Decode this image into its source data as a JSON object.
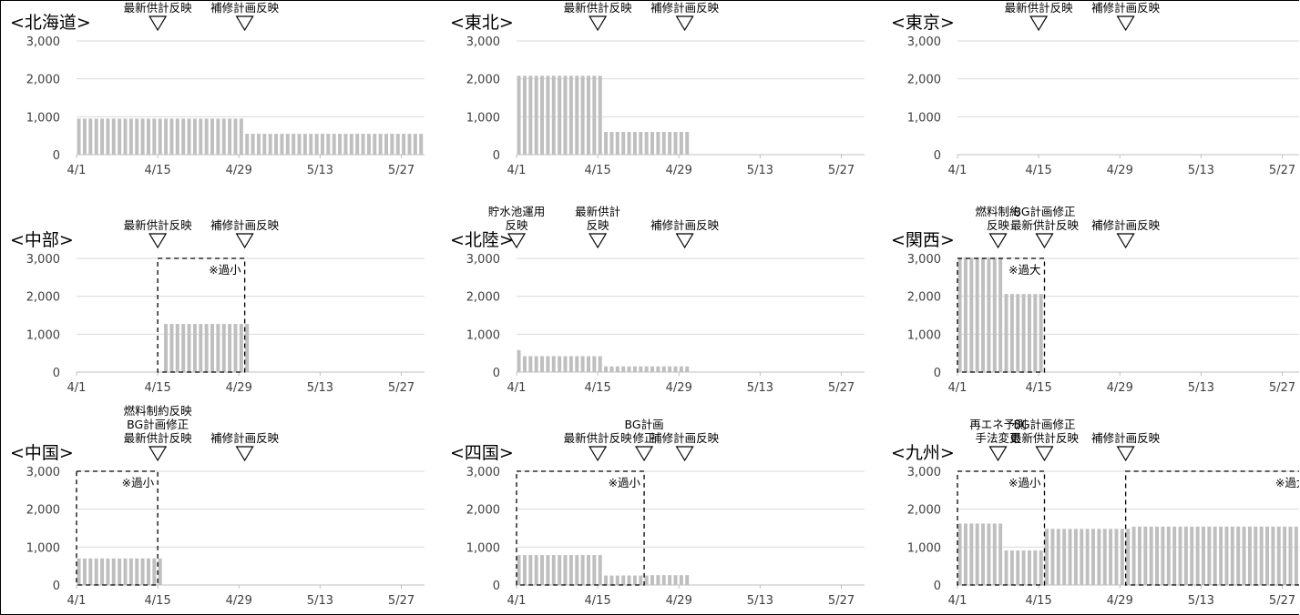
{
  "chart_data": [
    {
      "type": "bar",
      "title": "<北海道>",
      "x_ticks": [
        "4/1",
        "4/15",
        "4/29",
        "5/13",
        "5/27"
      ],
      "y_ticks": [
        "3,000",
        "2,000",
        "1,000",
        "0"
      ],
      "ylim": [
        0,
        3000
      ],
      "xlim_days": [
        1,
        61
      ],
      "bars": [
        {
          "from": "4/1",
          "to": "4/29",
          "value": 950
        },
        {
          "from": "4/30",
          "to": "5/30",
          "value": 550
        }
      ],
      "markers": [
        {
          "date": "4/15",
          "lines": [
            "最新供計反映"
          ]
        },
        {
          "date": "4/30",
          "lines": [
            "補修計画反映"
          ]
        }
      ],
      "boxes": []
    },
    {
      "type": "bar",
      "title": "<東北>",
      "x_ticks": [
        "4/1",
        "4/15",
        "4/29",
        "5/13",
        "5/27"
      ],
      "y_ticks": [
        "3,000",
        "2,000",
        "1,000",
        "0"
      ],
      "ylim": [
        0,
        3000
      ],
      "xlim_days": [
        1,
        61
      ],
      "bars": [
        {
          "from": "4/1",
          "to": "4/15",
          "value": 2080
        },
        {
          "from": "4/16",
          "to": "4/30",
          "value": 600
        }
      ],
      "markers": [
        {
          "date": "4/15",
          "lines": [
            "最新供計反映"
          ]
        },
        {
          "date": "4/30",
          "lines": [
            "補修計画反映"
          ]
        }
      ],
      "boxes": []
    },
    {
      "type": "bar",
      "title": "<東京>",
      "x_ticks": [
        "4/1",
        "4/15",
        "4/29",
        "5/13",
        "5/27"
      ],
      "y_ticks": [
        "3,000",
        "2,000",
        "1,000",
        "0"
      ],
      "ylim": [
        0,
        3000
      ],
      "xlim_days": [
        1,
        61
      ],
      "bars": [],
      "markers": [
        {
          "date": "4/15",
          "lines": [
            "最新供計反映"
          ]
        },
        {
          "date": "4/30",
          "lines": [
            "補修計画反映"
          ]
        }
      ],
      "boxes": []
    },
    {
      "type": "bar",
      "title": "<中部>",
      "x_ticks": [
        "4/1",
        "4/15",
        "4/29",
        "5/13",
        "5/27"
      ],
      "y_ticks": [
        "3,000",
        "2,000",
        "1,000",
        "0"
      ],
      "ylim": [
        0,
        3000
      ],
      "xlim_days": [
        1,
        61
      ],
      "bars": [
        {
          "from": "4/16",
          "to": "4/30",
          "value": 1270
        }
      ],
      "markers": [
        {
          "date": "4/15",
          "lines": [
            "最新供計反映"
          ]
        },
        {
          "date": "4/30",
          "lines": [
            "補修計画反映"
          ]
        }
      ],
      "boxes": [
        {
          "from": "4/15",
          "to": "4/30",
          "value": 3000,
          "label": "※過小"
        }
      ]
    },
    {
      "type": "bar",
      "title": "<北陸>",
      "x_ticks": [
        "4/1",
        "4/15",
        "4/29",
        "5/13",
        "5/27"
      ],
      "y_ticks": [
        "3,000",
        "2,000",
        "1,000",
        "0"
      ],
      "ylim": [
        0,
        3000
      ],
      "xlim_days": [
        1,
        61
      ],
      "bars": [
        {
          "from": "4/1",
          "to": "4/1",
          "value": 580
        },
        {
          "from": "4/2",
          "to": "4/15",
          "value": 420
        },
        {
          "from": "4/16",
          "to": "4/30",
          "value": 150
        }
      ],
      "markers": [
        {
          "date": "4/1",
          "lines": [
            "貯水池運用",
            "反映"
          ]
        },
        {
          "date": "4/15",
          "lines": [
            "最新供計",
            "反映"
          ]
        },
        {
          "date": "4/30",
          "lines": [
            "補修計画反映"
          ]
        }
      ],
      "boxes": []
    },
    {
      "type": "bar",
      "title": "<関西>",
      "x_ticks": [
        "4/1",
        "4/15",
        "4/29",
        "5/13",
        "5/27"
      ],
      "y_ticks": [
        "3,000",
        "2,000",
        "1,000",
        "0"
      ],
      "ylim": [
        0,
        3000
      ],
      "xlim_days": [
        1,
        61
      ],
      "bars": [
        {
          "from": "4/1",
          "to": "4/8",
          "value": 3020
        },
        {
          "from": "4/9",
          "to": "4/15",
          "value": 2060
        }
      ],
      "markers": [
        {
          "date": "4/8",
          "lines": [
            "燃料制約",
            "反映"
          ]
        },
        {
          "date": "4/16",
          "lines": [
            "BG計画修正",
            "最新供計反映"
          ]
        },
        {
          "date": "4/30",
          "lines": [
            "補修計画反映"
          ]
        }
      ],
      "boxes": [
        {
          "from": "4/1",
          "to": "4/16",
          "value": 3000,
          "label": "※過大"
        }
      ]
    },
    {
      "type": "bar",
      "title": "<中国>",
      "x_ticks": [
        "4/1",
        "4/15",
        "4/29",
        "5/13",
        "5/27"
      ],
      "y_ticks": [
        "3,000",
        "2,000",
        "1,000",
        "0"
      ],
      "ylim": [
        0,
        3000
      ],
      "xlim_days": [
        1,
        61
      ],
      "bars": [
        {
          "from": "4/1",
          "to": "4/15",
          "value": 700
        }
      ],
      "markers": [
        {
          "date": "4/15",
          "lines": [
            "燃料制約反映",
            "BG計画修正",
            "最新供計反映"
          ]
        },
        {
          "date": "4/30",
          "lines": [
            "補修計画反映"
          ]
        }
      ],
      "boxes": [
        {
          "from": "4/1",
          "to": "4/15",
          "value": 3000,
          "label": "※過小"
        }
      ]
    },
    {
      "type": "bar",
      "title": "<四国>",
      "x_ticks": [
        "4/1",
        "4/15",
        "4/29",
        "5/13",
        "5/27"
      ],
      "y_ticks": [
        "3,000",
        "2,000",
        "1,000",
        "0"
      ],
      "ylim": [
        0,
        3000
      ],
      "xlim_days": [
        1,
        61
      ],
      "bars": [
        {
          "from": "4/1",
          "to": "4/15",
          "value": 790
        },
        {
          "from": "4/16",
          "to": "4/23",
          "value": 250
        },
        {
          "from": "4/24",
          "to": "4/30",
          "value": 260
        }
      ],
      "markers": [
        {
          "date": "4/15",
          "lines": [
            "最新供計反映"
          ]
        },
        {
          "date": "4/23",
          "lines": [
            "BG計画",
            "修正"
          ]
        },
        {
          "date": "4/30",
          "lines": [
            "補修計画反映"
          ]
        }
      ],
      "boxes": [
        {
          "from": "4/1",
          "to": "4/23",
          "value": 3000,
          "label": "※過小"
        }
      ]
    },
    {
      "type": "bar",
      "title": "<九州>",
      "x_ticks": [
        "4/1",
        "4/15",
        "4/29",
        "5/13",
        "5/27"
      ],
      "y_ticks": [
        "3,000",
        "2,000",
        "1,000",
        "0"
      ],
      "ylim": [
        0,
        3000
      ],
      "xlim_days": [
        1,
        61
      ],
      "bars": [
        {
          "from": "4/1",
          "to": "4/8",
          "value": 1620
        },
        {
          "from": "4/9",
          "to": "4/15",
          "value": 910
        },
        {
          "from": "4/16",
          "to": "4/30",
          "value": 1480
        },
        {
          "from": "5/1",
          "to": "5/31",
          "value": 1540
        }
      ],
      "markers": [
        {
          "date": "4/8",
          "lines": [
            "再エネ予測",
            "手法変更"
          ]
        },
        {
          "date": "4/16",
          "lines": [
            "BG計画修正",
            "最新供計反映"
          ]
        },
        {
          "date": "4/30",
          "lines": [
            "補修計画反映"
          ]
        }
      ],
      "boxes": [
        {
          "from": "4/1",
          "to": "4/16",
          "value": 3000,
          "label": "※過小"
        },
        {
          "from": "4/30",
          "to": "6/1",
          "value": 3000,
          "label": "※過大"
        }
      ]
    }
  ]
}
